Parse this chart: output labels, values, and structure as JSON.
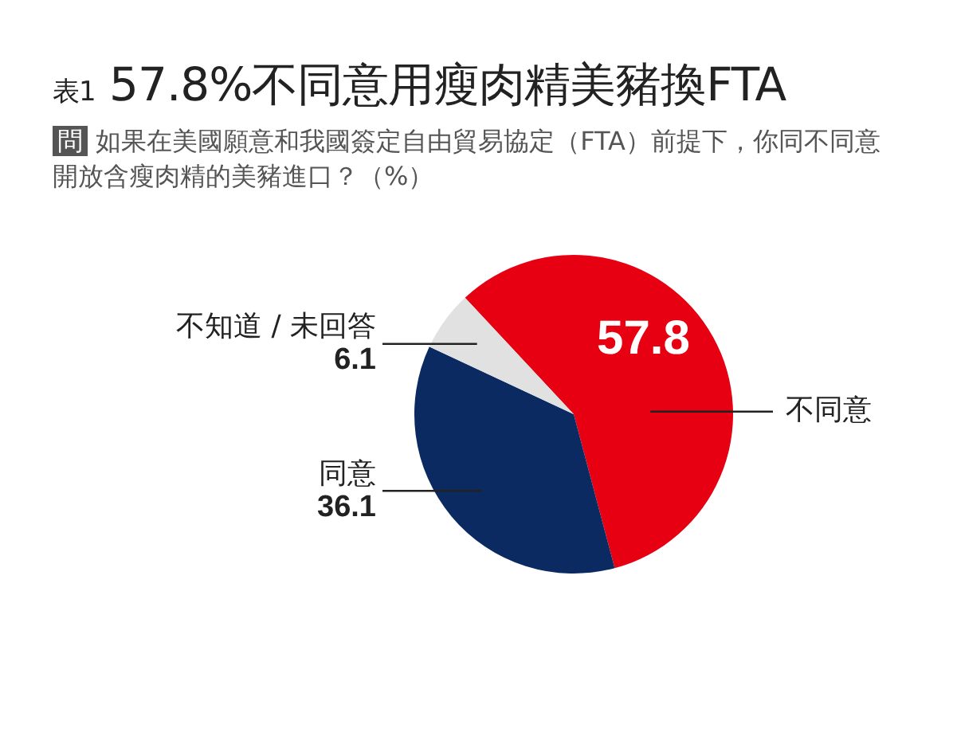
{
  "chart_data": {
    "type": "pie",
    "title": "表1 57.8%不同意用瘦肉精美豬換FTA",
    "subtitle": "問 如果在美國願意和我國簽定自由貿易協定（FTA）前提下，你同不同意開放含瘦肉精的美豬進口？（%）",
    "categories": [
      "不同意",
      "同意",
      "不知道 / 未回答"
    ],
    "values": [
      57.8,
      36.1,
      6.1
    ],
    "colors": [
      "#e60012",
      "#0b2a62",
      "#e1e1e1"
    ],
    "data_labels": true,
    "legend": false
  }
}
